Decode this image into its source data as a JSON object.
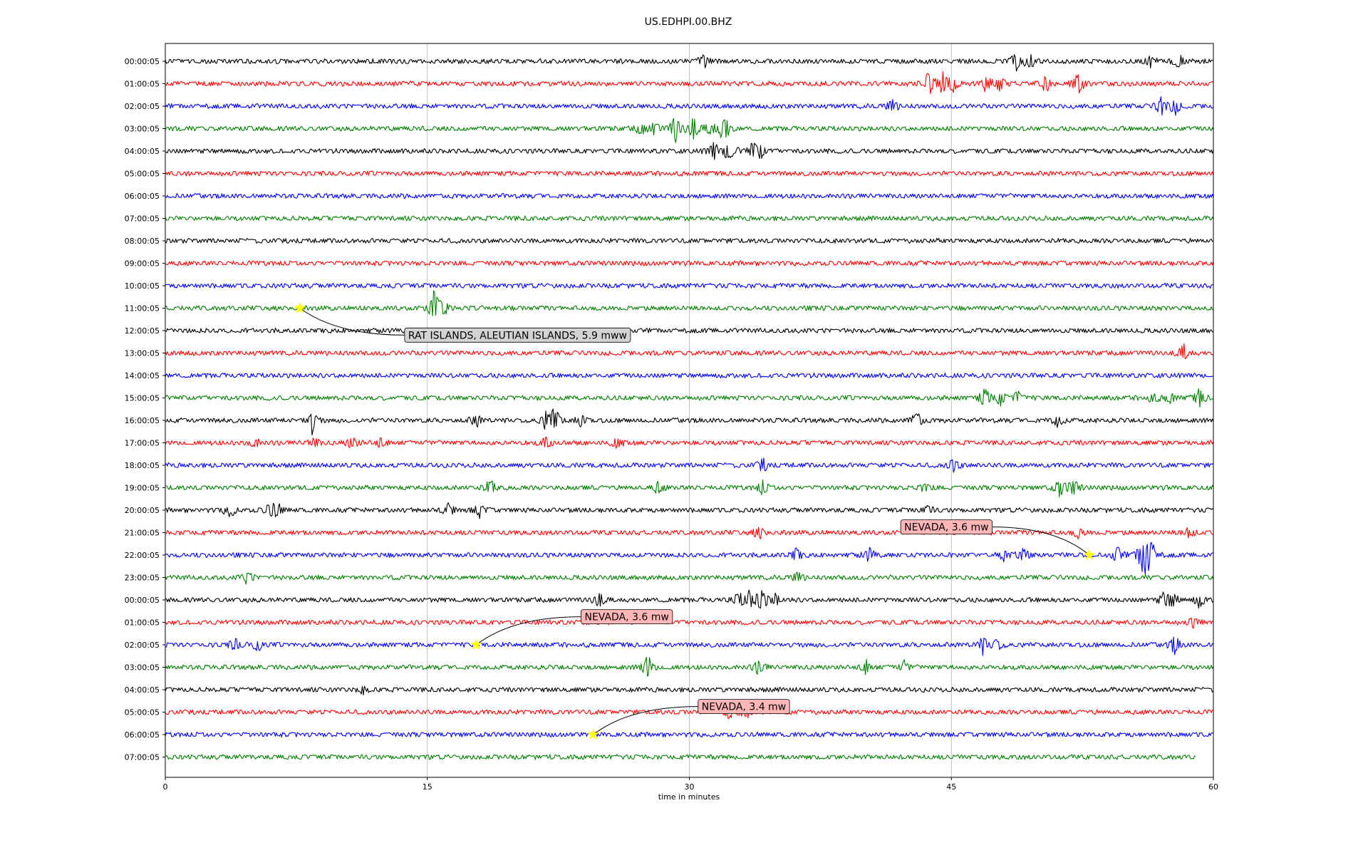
{
  "chart_data": {
    "type": "line",
    "title": "US.EDHPI.00.BHZ",
    "xlabel": "time in minutes",
    "ylabel": "",
    "xlim": [
      0,
      60
    ],
    "xticks": [
      "0",
      "15",
      "30",
      "45",
      "60"
    ],
    "grid": "vertical lines at 15-minute ticks",
    "trace_colors": [
      "#000000",
      "#ff0000",
      "#0000ff",
      "#008000"
    ],
    "rows": [
      {
        "label": "00:00:05",
        "color": "#000000",
        "events": [
          [
            30.9,
            14
          ],
          [
            48.7,
            12
          ],
          [
            49.5,
            14
          ],
          [
            56.4,
            10
          ],
          [
            58.0,
            11
          ]
        ]
      },
      {
        "label": "01:00:05",
        "color": "#ff0000",
        "events": [
          [
            43.7,
            18
          ],
          [
            44.5,
            16
          ],
          [
            45.1,
            12
          ],
          [
            47.0,
            13
          ],
          [
            47.8,
            11
          ],
          [
            50.4,
            14
          ],
          [
            52.3,
            20
          ]
        ]
      },
      {
        "label": "02:00:05",
        "color": "#0000ff",
        "events": [
          [
            41.6,
            10
          ],
          [
            57.0,
            14
          ],
          [
            57.8,
            12
          ]
        ]
      },
      {
        "label": "03:00:05",
        "color": "#008000",
        "events": [
          [
            27.2,
            8
          ],
          [
            28.0,
            10
          ],
          [
            29.2,
            22
          ],
          [
            30.2,
            18
          ],
          [
            31.2,
            10
          ],
          [
            32.0,
            26
          ]
        ]
      },
      {
        "label": "04:00:05",
        "color": "#000000",
        "events": [
          [
            31.4,
            14
          ],
          [
            32.3,
            20
          ],
          [
            33.6,
            12
          ],
          [
            34.1,
            10
          ]
        ]
      },
      {
        "label": "05:00:05",
        "color": "#ff0000",
        "events": []
      },
      {
        "label": "06:00:05",
        "color": "#0000ff",
        "events": []
      },
      {
        "label": "07:00:05",
        "color": "#008000",
        "events": []
      },
      {
        "label": "08:00:05",
        "color": "#000000",
        "events": []
      },
      {
        "label": "09:00:05",
        "color": "#ff0000",
        "events": []
      },
      {
        "label": "10:00:05",
        "color": "#0000ff",
        "events": []
      },
      {
        "label": "11:00:05",
        "color": "#008000",
        "events": [
          [
            15.4,
            28
          ],
          [
            16.0,
            8
          ]
        ]
      },
      {
        "label": "12:00:05",
        "color": "#000000",
        "events": []
      },
      {
        "label": "13:00:05",
        "color": "#ff0000",
        "events": [
          [
            58.3,
            12
          ]
        ]
      },
      {
        "label": "14:00:05",
        "color": "#0000ff",
        "events": []
      },
      {
        "label": "15:00:05",
        "color": "#008000",
        "events": [
          [
            46.9,
            14
          ],
          [
            47.8,
            12
          ],
          [
            48.8,
            10
          ],
          [
            56.5,
            8
          ],
          [
            57.5,
            8
          ],
          [
            59.2,
            12
          ]
        ]
      },
      {
        "label": "16:00:05",
        "color": "#000000",
        "events": [
          [
            8.4,
            18
          ],
          [
            17.8,
            10
          ],
          [
            21.8,
            12
          ],
          [
            22.3,
            22
          ],
          [
            23.8,
            10
          ],
          [
            43.0,
            14
          ],
          [
            51.1,
            10
          ]
        ]
      },
      {
        "label": "17:00:05",
        "color": "#ff0000",
        "events": [
          [
            5.1,
            8
          ],
          [
            8.5,
            8
          ],
          [
            10.7,
            10
          ],
          [
            12.3,
            8
          ],
          [
            21.8,
            8
          ],
          [
            25.9,
            8
          ]
        ]
      },
      {
        "label": "18:00:05",
        "color": "#0000ff",
        "events": [
          [
            34.2,
            10
          ],
          [
            45.1,
            12
          ]
        ]
      },
      {
        "label": "19:00:05",
        "color": "#008000",
        "events": [
          [
            18.6,
            12
          ],
          [
            28.2,
            8
          ],
          [
            34.2,
            10
          ],
          [
            43.5,
            8
          ],
          [
            51.2,
            12
          ],
          [
            52.0,
            14
          ]
        ]
      },
      {
        "label": "20:00:05",
        "color": "#000000",
        "events": [
          [
            3.7,
            12
          ],
          [
            6.0,
            10
          ],
          [
            6.4,
            10
          ],
          [
            16.2,
            10
          ],
          [
            18.0,
            10
          ],
          [
            43.6,
            8
          ]
        ]
      },
      {
        "label": "21:00:05",
        "color": "#ff0000",
        "events": [
          [
            34.0,
            10
          ],
          [
            52.3,
            8
          ],
          [
            58.6,
            10
          ]
        ]
      },
      {
        "label": "22:00:05",
        "color": "#0000ff",
        "events": [
          [
            36.1,
            10
          ],
          [
            40.3,
            10
          ],
          [
            48.0,
            10
          ],
          [
            49.1,
            12
          ],
          [
            54.5,
            12
          ],
          [
            56.0,
            40
          ],
          [
            56.4,
            26
          ]
        ]
      },
      {
        "label": "23:00:05",
        "color": "#008000",
        "events": [
          [
            4.7,
            10
          ],
          [
            36.2,
            8
          ]
        ]
      },
      {
        "label": "00:00:05",
        "color": "#000000",
        "events": [
          [
            24.8,
            12
          ],
          [
            32.8,
            10
          ],
          [
            33.4,
            12
          ],
          [
            34.1,
            18
          ],
          [
            34.9,
            10
          ],
          [
            57.2,
            12
          ],
          [
            57.7,
            10
          ],
          [
            59.2,
            10
          ]
        ]
      },
      {
        "label": "01:00:05",
        "color": "#ff0000",
        "events": [
          [
            58.9,
            8
          ]
        ]
      },
      {
        "label": "02:00:05",
        "color": "#0000ff",
        "events": [
          [
            4.0,
            10
          ],
          [
            5.3,
            10
          ],
          [
            46.8,
            12
          ],
          [
            47.6,
            10
          ],
          [
            57.8,
            14
          ]
        ]
      },
      {
        "label": "03:00:05",
        "color": "#008000",
        "events": [
          [
            27.6,
            20
          ],
          [
            34.0,
            12
          ],
          [
            40.1,
            10
          ],
          [
            42.3,
            8
          ]
        ]
      },
      {
        "label": "04:00:05",
        "color": "#000000",
        "events": [
          [
            11.3,
            6
          ]
        ]
      },
      {
        "label": "05:00:05",
        "color": "#ff0000",
        "events": [
          [
            32.3,
            10
          ],
          [
            33.3,
            10
          ]
        ]
      },
      {
        "label": "06:00:05",
        "color": "#0000ff",
        "events": []
      },
      {
        "label": "07:00:05",
        "color": "#008000",
        "events": [],
        "end": 59.0
      }
    ],
    "annotations": [
      {
        "text": "RAT ISLANDS, ALEUTIAN ISLANDS, 5.9 mww",
        "row": 11,
        "x": 7.7,
        "box_color": "#d3d3d3",
        "box_row": 12.2,
        "box_x": 13.7
      },
      {
        "text": "NEVADA, 3.6 mw",
        "row": 22,
        "x": 52.9,
        "box_color": "#ffb6b6",
        "box_row": 20.75,
        "box_x": 42.1
      },
      {
        "text": "NEVADA, 3.6 mw",
        "row": 26,
        "x": 17.8,
        "box_color": "#ffb6b6",
        "box_row": 24.75,
        "box_x": 23.8
      },
      {
        "text": "NEVADA, 3.4 mw",
        "row": 30,
        "x": 24.5,
        "box_color": "#ffb6b6",
        "box_row": 28.75,
        "box_x": 30.5
      }
    ]
  }
}
